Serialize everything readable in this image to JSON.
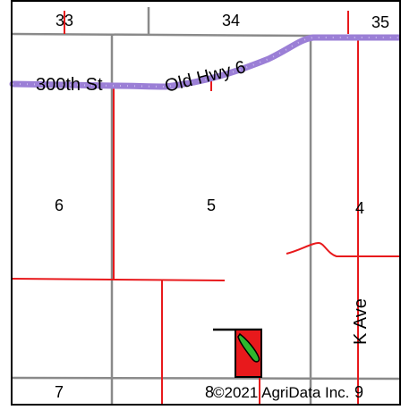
{
  "map": {
    "sections_top": [
      "33",
      "34",
      "35"
    ],
    "sections_mid": [
      "6",
      "5",
      "4"
    ],
    "sections_bottom": [
      "7",
      "8",
      "9"
    ],
    "roads": {
      "street_300th": "300th St",
      "old_hwy_6": "Old Hwy 6",
      "k_ave": "K Ave"
    },
    "copyright": "©2021 AgriData Inc.",
    "colors": {
      "section_line": "#8a8a8a",
      "property_line": "#e8191c",
      "highway": "#9b7fd6",
      "field_fill": "#e8191c",
      "field_feature": "#2eb82e"
    }
  }
}
